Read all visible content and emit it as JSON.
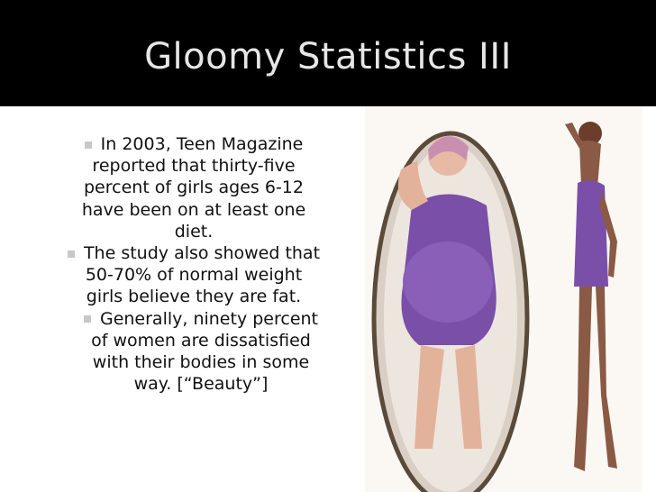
{
  "slide": {
    "title": "Gloomy Statistics III",
    "bullets": [
      {
        "level": 1,
        "text": "In 2003, Teen Magazine reported that thirty-five percent  of girls ages 6-12 have been on at least one diet."
      },
      {
        "level": 1,
        "text": "The study also showed that 50-70% of normal weight girls believe they are fat."
      },
      {
        "level": 2,
        "text": "Generally, ninety percent of women are dissatisfied with their bodies in some way. [“Beauty”]"
      }
    ],
    "image": {
      "icon": "mirror-body-image-illustration",
      "dress_color": "#7a4fa8"
    }
  },
  "colors": {
    "title_bar": "#000000",
    "title_text": "#e6e6e6",
    "bullet": "#c8c8c8"
  }
}
